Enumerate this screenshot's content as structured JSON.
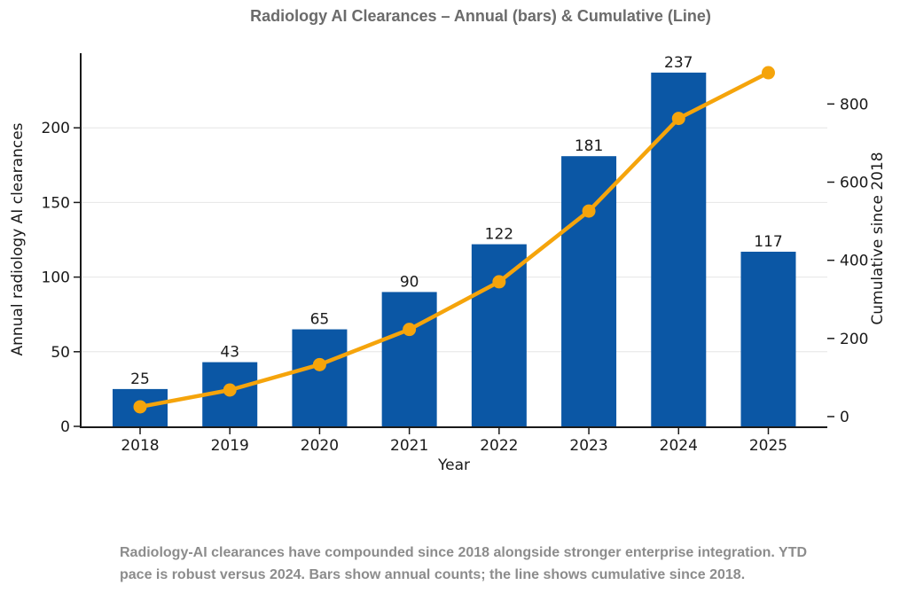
{
  "title": "Radiology AI Clearances – Annual (bars) & Cumulative (Line)",
  "caption_lines": [
    "Radiology-AI clearances have compounded since 2018 alongside stronger enterprise integration. YTD",
    "pace is robust versus 2024. Bars show annual counts; the line shows cumulative since 2018."
  ],
  "colors": {
    "bar": "#0b57a5",
    "line": "#f5a40b",
    "title_text": "#6b6b6b",
    "caption_text": "#8c8c8c",
    "axis_text": "#1a1a1a",
    "grid": "#e6e6e6",
    "spine": "#1a1a1a",
    "background": "#ffffff"
  },
  "chart_data": {
    "type": "bar",
    "subtype": "bar-with-cumulative-line-dual-axis",
    "title": "Radiology AI Clearances – Annual (bars) & Cumulative (Line)",
    "categories": [
      "2018",
      "2019",
      "2020",
      "2021",
      "2022",
      "2023",
      "2024",
      "2025"
    ],
    "series": [
      {
        "name": "Annual radiology AI clearances",
        "type": "bar",
        "axis": "left",
        "color": "#0b57a5",
        "values": [
          25,
          43,
          65,
          90,
          122,
          181,
          237,
          117
        ]
      },
      {
        "name": "Cumulative since 2018",
        "type": "line",
        "axis": "right",
        "color": "#f5a40b",
        "values": [
          25,
          68,
          133,
          223,
          345,
          526,
          763,
          880
        ]
      }
    ],
    "bar_value_labels": [
      "25",
      "43",
      "65",
      "90",
      "122",
      "181",
      "237",
      "117"
    ],
    "xlabel": "Year",
    "ylabel_left": "Annual radiology AI clearances",
    "ylabel_right": "Cumulative since 2018",
    "ylim_left": [
      0,
      250
    ],
    "yticks_left": [
      0,
      50,
      100,
      150,
      200
    ],
    "ylim_right": [
      -25,
      930
    ],
    "yticks_right": [
      0,
      200,
      400,
      600,
      800
    ],
    "grid": true,
    "legend": false
  }
}
